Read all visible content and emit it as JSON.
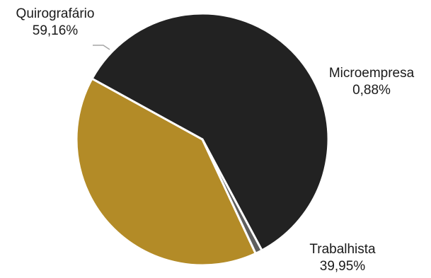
{
  "chart_data": {
    "type": "pie",
    "title": "",
    "slices": [
      {
        "label": "Quirografário",
        "value_label": "59,16%",
        "value": 59.16,
        "color": "#222222"
      },
      {
        "label": "Microempresa",
        "value_label": "0,88%",
        "value": 0.88,
        "color": "#5e5e5e"
      },
      {
        "label": "Trabalhista",
        "value_label": "39,95%",
        "value": 39.95,
        "color": "#b38b27"
      }
    ],
    "legend": "none",
    "data_labels": "outside"
  }
}
